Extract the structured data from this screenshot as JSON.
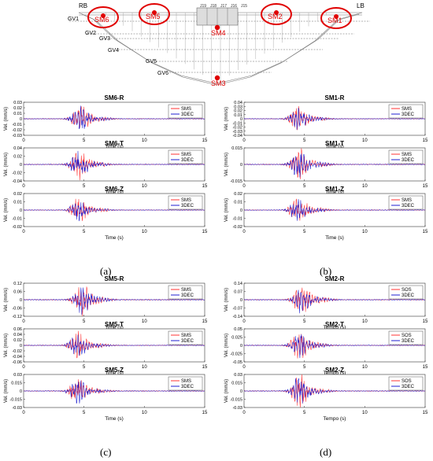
{
  "dam": {
    "bank_left": "RB",
    "bank_right": "LB",
    "galleries": [
      "GV1",
      "GV2",
      "GV3",
      "GV4",
      "GV5",
      "GV6"
    ],
    "stations": [
      {
        "label": "SM6",
        "circled": true
      },
      {
        "label": "SM5",
        "circled": true
      },
      {
        "label": "SM4",
        "circled": false
      },
      {
        "label": "SM2",
        "circled": true
      },
      {
        "label": "SM1",
        "circled": true
      },
      {
        "label": "SM3",
        "circled": false
      }
    ],
    "block_labels": [
      "J19",
      "J18",
      "J17",
      "J16",
      "J15"
    ],
    "accent_color": "#e00000"
  },
  "panel_labels": [
    "(a)",
    "(b)",
    "(c)",
    "(d)"
  ],
  "colors": {
    "measured": "#ff3333",
    "simulated": "#1f1fd0"
  },
  "chart_data": [
    {
      "type": "line",
      "title": "SM6-R",
      "xlabel": "Time (s)",
      "ylabel": "Vel. (mm/s)",
      "xlim": [
        0,
        15
      ],
      "ylim": [
        -0.03,
        0.03
      ],
      "yticks": [
        -0.03,
        -0.02,
        -0.01,
        0,
        0.01,
        0.02,
        0.03
      ],
      "xticks": [
        0,
        5,
        10,
        15
      ],
      "legend": [
        "SMS",
        "3DEC"
      ],
      "legend_position": "top-right",
      "peak_time": 4.7,
      "peak_amplitude": 0.02
    },
    {
      "type": "line",
      "title": "SM6-T",
      "xlabel": "Time (s)",
      "ylabel": "Vel. (mm/s)",
      "xlim": [
        0,
        15
      ],
      "ylim": [
        -0.04,
        0.04
      ],
      "yticks": [
        -0.04,
        -0.02,
        0,
        0.02,
        0.04
      ],
      "xticks": [
        0,
        5,
        10,
        15
      ],
      "legend": [
        "SMS",
        "3DEC"
      ],
      "legend_position": "top-right",
      "peak_time": 4.6,
      "peak_amplitude": 0.03
    },
    {
      "type": "line",
      "title": "SM6-Z",
      "xlabel": "Time (s)",
      "ylabel": "Vel. (mm/s)",
      "xlim": [
        0,
        15
      ],
      "ylim": [
        -0.02,
        0.02
      ],
      "yticks": [
        -0.02,
        -0.01,
        0,
        0.01,
        0.02
      ],
      "xticks": [
        0,
        5,
        10,
        15
      ],
      "legend": [
        "SMS",
        "3DEC"
      ],
      "legend_position": "top-right",
      "peak_time": 4.6,
      "peak_amplitude": 0.012
    },
    {
      "type": "line",
      "title": "SM1-R",
      "xlabel": "Time (s)",
      "ylabel": "Vel. (mm/s)",
      "xlim": [
        0,
        15
      ],
      "ylim": [
        -0.04,
        0.04
      ],
      "yticks": [
        -0.04,
        -0.03,
        -0.02,
        -0.01,
        0,
        0.01,
        0.02,
        0.03,
        0.04
      ],
      "xticks": [
        0,
        5,
        10,
        15
      ],
      "legend": [
        "SMS",
        "3DEC"
      ],
      "legend_position": "top-right",
      "peak_time": 4.5,
      "peak_amplitude": 0.025
    },
    {
      "type": "line",
      "title": "SM1-T",
      "xlabel": "Time (s)",
      "ylabel": "Vel. (mm/s)",
      "xlim": [
        0,
        15
      ],
      "ylim": [
        -0.015,
        0.015
      ],
      "yticks": [
        -0.015,
        0,
        0.015
      ],
      "xticks": [
        0,
        5,
        10,
        15
      ],
      "legend": [
        "SMS",
        "3DEC"
      ],
      "legend_position": "top-right",
      "peak_time": 4.6,
      "peak_amplitude": 0.012
    },
    {
      "type": "line",
      "title": "SM1-Z",
      "xlabel": "Time (s)",
      "ylabel": "Vel. (mm/s)",
      "xlim": [
        0,
        15
      ],
      "ylim": [
        -0.02,
        0.02
      ],
      "yticks": [
        -0.02,
        -0.01,
        0,
        0.01,
        0.02
      ],
      "xticks": [
        0,
        5,
        10,
        15
      ],
      "legend": [
        "SMS",
        "3DEC"
      ],
      "legend_position": "top-right",
      "peak_time": 4.5,
      "peak_amplitude": 0.013
    },
    {
      "type": "line",
      "title": "SM5-R",
      "xlabel": "Time (s)",
      "ylabel": "Vel. (mm/s)",
      "xlim": [
        0,
        15
      ],
      "ylim": [
        -0.12,
        0.12
      ],
      "yticks": [
        -0.12,
        -0.06,
        0,
        0.06,
        0.12
      ],
      "xticks": [
        0,
        5,
        10,
        15
      ],
      "legend": [
        "SMS",
        "3DEC"
      ],
      "legend_position": "top-right",
      "peak_time": 4.8,
      "peak_amplitude": 0.1
    },
    {
      "type": "line",
      "title": "SM5-T",
      "xlabel": "Time (s)",
      "ylabel": "Vel. (mm/s)",
      "xlim": [
        0,
        15
      ],
      "ylim": [
        -0.06,
        0.06
      ],
      "yticks": [
        -0.06,
        -0.04,
        -0.02,
        0,
        0.02,
        0.04,
        0.06
      ],
      "xticks": [
        0,
        5,
        10,
        15
      ],
      "legend": [
        "SMS",
        "3DEC"
      ],
      "legend_position": "top-right",
      "peak_time": 4.5,
      "peak_amplitude": 0.04
    },
    {
      "type": "line",
      "title": "SM5-Z",
      "xlabel": "Time (s)",
      "ylabel": "Vel. (mm/s)",
      "xlim": [
        0,
        15
      ],
      "ylim": [
        -0.03,
        0.03
      ],
      "yticks": [
        -0.03,
        -0.015,
        0,
        0.015,
        0.03
      ],
      "xticks": [
        0,
        5,
        10,
        15
      ],
      "legend": [
        "SMS",
        "3DEC"
      ],
      "legend_position": "top-right",
      "peak_time": 4.5,
      "peak_amplitude": 0.022
    },
    {
      "type": "line",
      "title": "SM2-R",
      "xlabel": "Tempo (s)",
      "ylabel": "Vel. (mm/s)",
      "xlim": [
        0,
        15
      ],
      "ylim": [
        -0.14,
        0.14
      ],
      "yticks": [
        -0.14,
        -0.07,
        0,
        0.07,
        0.14
      ],
      "xticks": [
        0,
        5,
        10,
        15
      ],
      "legend": [
        "SOS",
        "3DEC"
      ],
      "legend_position": "top-right",
      "peak_time": 4.8,
      "peak_amplitude": 0.11
    },
    {
      "type": "line",
      "title": "SM2-T",
      "xlabel": "Tempo (s)",
      "ylabel": "Vel. (mm/s)",
      "xlim": [
        0,
        15
      ],
      "ylim": [
        -0.05,
        0.05
      ],
      "yticks": [
        -0.05,
        -0.025,
        0,
        0.025,
        0.05
      ],
      "xticks": [
        0,
        5,
        10,
        15
      ],
      "legend": [
        "SOS",
        "3DEC"
      ],
      "legend_position": "top-right",
      "peak_time": 4.6,
      "peak_amplitude": 0.035
    },
    {
      "type": "line",
      "title": "SM2-Z",
      "xlabel": "Tempo (s)",
      "ylabel": "Vel. (mm/s)",
      "xlim": [
        0,
        15
      ],
      "ylim": [
        -0.03,
        0.03
      ],
      "yticks": [
        -0.03,
        -0.015,
        0,
        0.015,
        0.03
      ],
      "xticks": [
        0,
        5,
        10,
        15
      ],
      "legend": [
        "SOS",
        "3DEC"
      ],
      "legend_position": "top-right",
      "peak_time": 4.6,
      "peak_amplitude": 0.024
    }
  ]
}
